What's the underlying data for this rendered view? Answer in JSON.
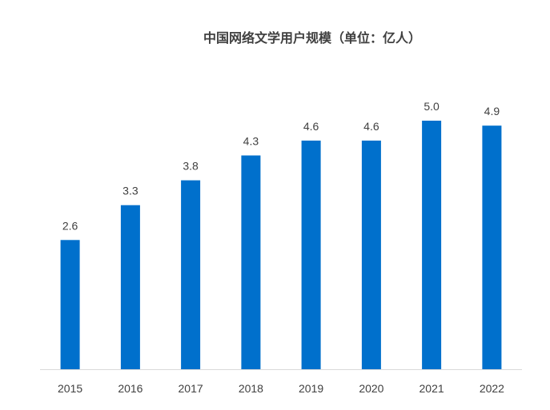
{
  "chart_data": {
    "type": "bar",
    "title": "中国网络文学用户规模（单位：亿人）",
    "xlabel": "",
    "ylabel": "",
    "categories": [
      "2015",
      "2016",
      "2017",
      "2018",
      "2019",
      "2020",
      "2021",
      "2022"
    ],
    "values": [
      2.6,
      3.3,
      3.8,
      4.3,
      4.6,
      4.6,
      5.0,
      4.9
    ],
    "data_labels": [
      "2.6",
      "3.3",
      "3.8",
      "4.3",
      "4.6",
      "4.6",
      "5.0",
      "4.9"
    ],
    "ylim": [
      0,
      5.0
    ],
    "grid": false,
    "legend": "none",
    "bar_color": "#0070CC",
    "axis_color": "#D9D9D9",
    "text_color": "#404040"
  }
}
